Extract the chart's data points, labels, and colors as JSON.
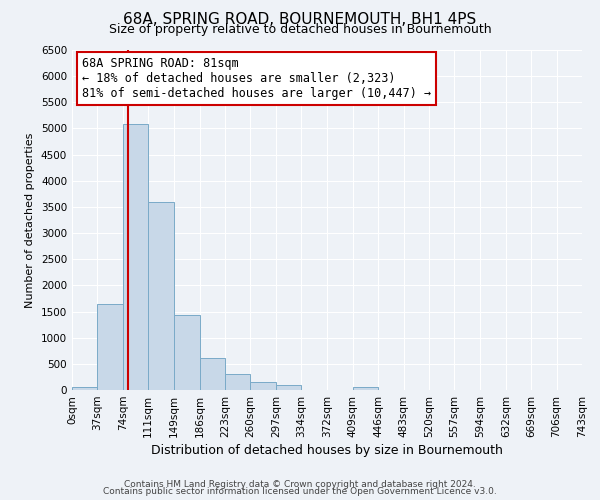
{
  "title": "68A, SPRING ROAD, BOURNEMOUTH, BH1 4PS",
  "subtitle": "Size of property relative to detached houses in Bournemouth",
  "xlabel": "Distribution of detached houses by size in Bournemouth",
  "ylabel": "Number of detached properties",
  "bar_color": "#c8d8e8",
  "bar_edge_color": "#7aaac8",
  "background_color": "#eef2f7",
  "grid_color": "#ffffff",
  "bins": [
    0,
    37,
    74,
    111,
    149,
    186,
    223,
    260,
    297,
    334,
    372,
    409,
    446,
    483,
    520,
    557,
    594,
    632,
    669,
    706,
    743
  ],
  "bin_labels": [
    "0sqm",
    "37sqm",
    "74sqm",
    "111sqm",
    "149sqm",
    "186sqm",
    "223sqm",
    "260sqm",
    "297sqm",
    "334sqm",
    "372sqm",
    "409sqm",
    "446sqm",
    "483sqm",
    "520sqm",
    "557sqm",
    "594sqm",
    "632sqm",
    "669sqm",
    "706sqm",
    "743sqm"
  ],
  "bar_heights": [
    50,
    1650,
    5080,
    3600,
    1430,
    620,
    310,
    155,
    90,
    0,
    0,
    50,
    0,
    0,
    0,
    0,
    0,
    0,
    0,
    0
  ],
  "ylim": [
    0,
    6500
  ],
  "yticks": [
    0,
    500,
    1000,
    1500,
    2000,
    2500,
    3000,
    3500,
    4000,
    4500,
    5000,
    5500,
    6000,
    6500
  ],
  "vline_x": 81,
  "vline_color": "#cc0000",
  "annotation_box_text_line1": "68A SPRING ROAD: 81sqm",
  "annotation_box_text_line2": "← 18% of detached houses are smaller (2,323)",
  "annotation_box_text_line3": "81% of semi-detached houses are larger (10,447) →",
  "annotation_box_color": "#ffffff",
  "annotation_box_edge_color": "#cc0000",
  "footer_line1": "Contains HM Land Registry data © Crown copyright and database right 2024.",
  "footer_line2": "Contains public sector information licensed under the Open Government Licence v3.0.",
  "title_fontsize": 11,
  "subtitle_fontsize": 9,
  "xlabel_fontsize": 9,
  "ylabel_fontsize": 8,
  "tick_fontsize": 7.5,
  "annotation_fontsize": 8.5,
  "footer_fontsize": 6.5
}
